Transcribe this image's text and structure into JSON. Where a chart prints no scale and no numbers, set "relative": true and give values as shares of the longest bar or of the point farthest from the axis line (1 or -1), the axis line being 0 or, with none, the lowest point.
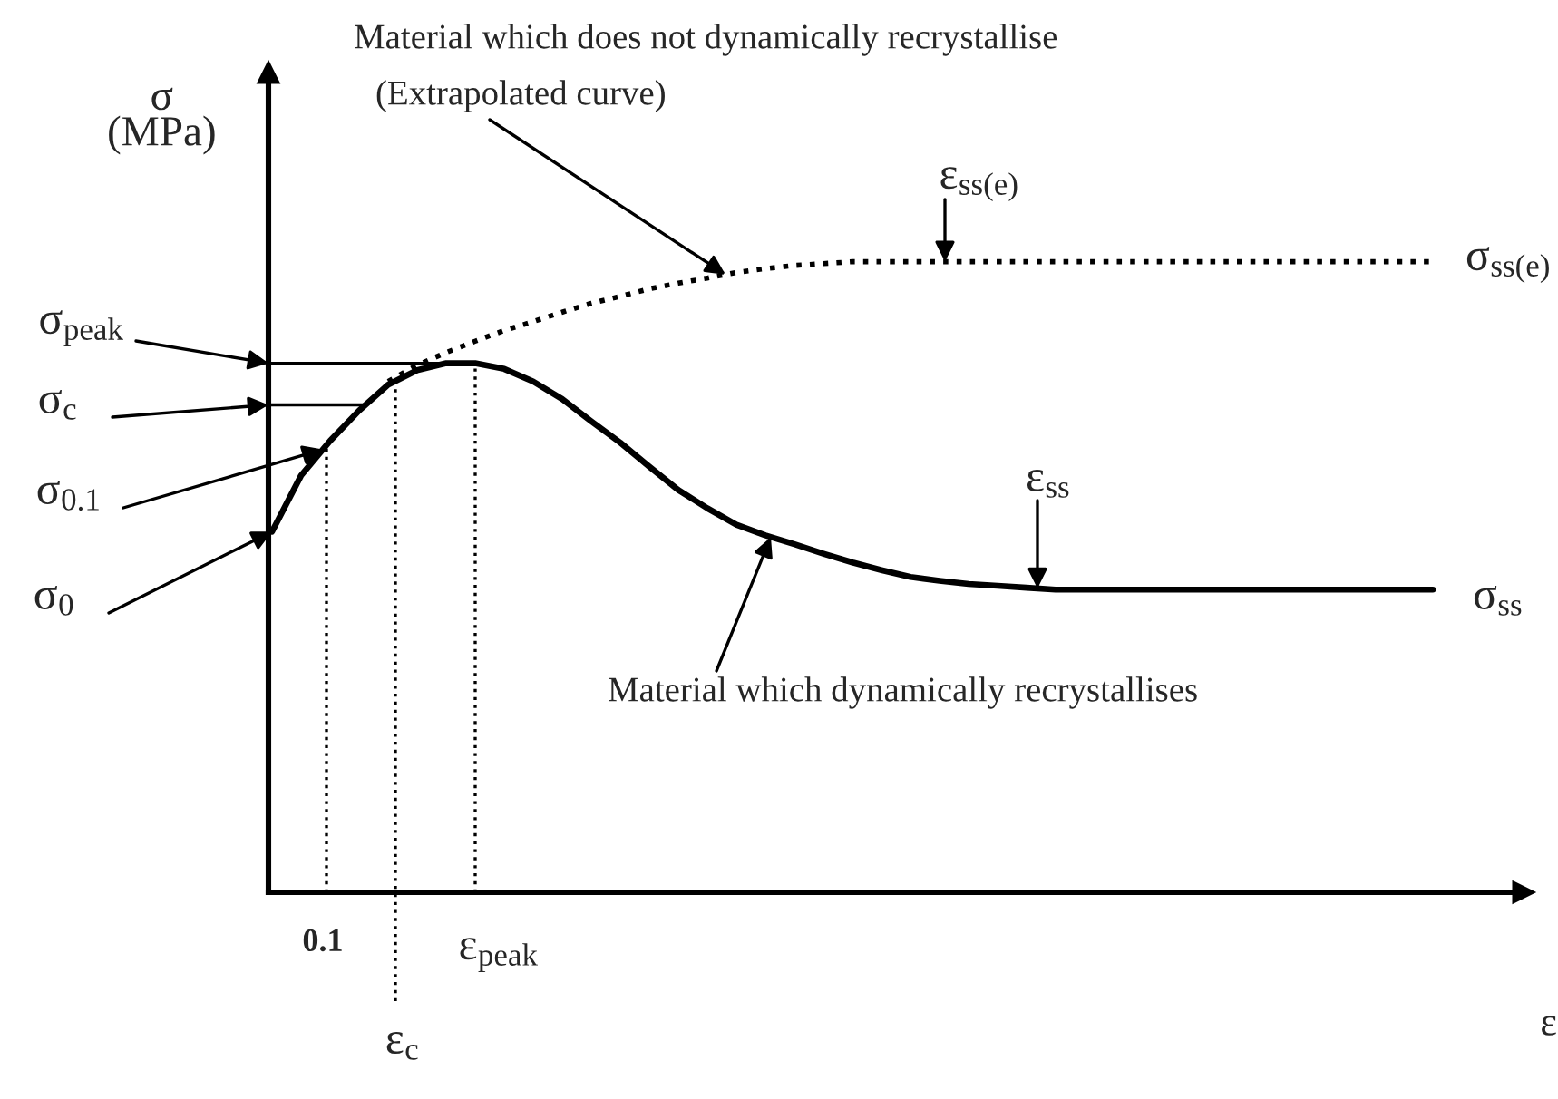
{
  "chart_data": {
    "type": "line",
    "relative": true,
    "ylabel": "σ\n(MPa)",
    "xlabel": "ε",
    "categories": [
      null,
      null,
      null,
      null,
      null,
      null,
      null,
      null,
      null,
      null,
      null,
      null,
      null,
      null,
      null,
      null,
      null,
      null,
      null,
      null,
      null,
      null,
      null,
      null,
      null,
      null,
      null,
      null,
      null,
      null,
      null,
      null,
      null,
      null,
      null,
      null,
      null,
      null,
      null,
      null,
      null
    ],
    "series": [
      {
        "color": "#000000",
        "line_style": "solid",
        "values": [
          0.572,
          0.661,
          0.716,
          0.764,
          0.805,
          0.828,
          0.839,
          0.839,
          0.83,
          0.81,
          0.782,
          0.747,
          0.713,
          0.675,
          0.638,
          0.609,
          0.583,
          0.566,
          0.552,
          0.537,
          0.523,
          0.511,
          0.5,
          0.494,
          0.489,
          0.486,
          0.483,
          0.48,
          0.48,
          0.48,
          0.48,
          0.48,
          0.48,
          0.48,
          0.48,
          0.48,
          0.48,
          0.48,
          0.48,
          0.48,
          0.48
        ]
      },
      {
        "color": "#000000",
        "line_style": "dotted",
        "values": [
          null,
          null,
          null,
          null,
          0.81,
          0.836,
          0.856,
          0.874,
          0.891,
          0.905,
          0.92,
          0.934,
          0.945,
          0.957,
          0.966,
          0.974,
          0.983,
          0.989,
          0.994,
          0.997,
          1,
          1,
          1,
          1,
          1,
          1,
          1,
          1,
          1,
          1,
          1,
          1,
          1,
          1,
          1,
          1,
          1,
          1,
          1,
          1,
          1
        ]
      }
    ],
    "ref_lines": [
      {
        "axis": "y",
        "value": 0.839,
        "line_style": "solid",
        "color": "#000000"
      },
      {
        "axis": "y",
        "value": 0.773,
        "line_style": "solid",
        "color": "#000000"
      }
    ],
    "annotations": [
      "σ$_{peak}$",
      "σ$_{c}$",
      "σ$_{0.1}$",
      "σ$_{0}$",
      "Material which does not dynamically recrystallise",
      "(Extrapolated curve)",
      "ε$_{ss(e)}$",
      "σ$_{ss(e)}$",
      "ε$_{ss}$",
      "σ$_{ss}$",
      "Material which dynamically recrystallises",
      "0.1",
      "ε$_{c}$",
      "ε$_{peak}$"
    ]
  }
}
